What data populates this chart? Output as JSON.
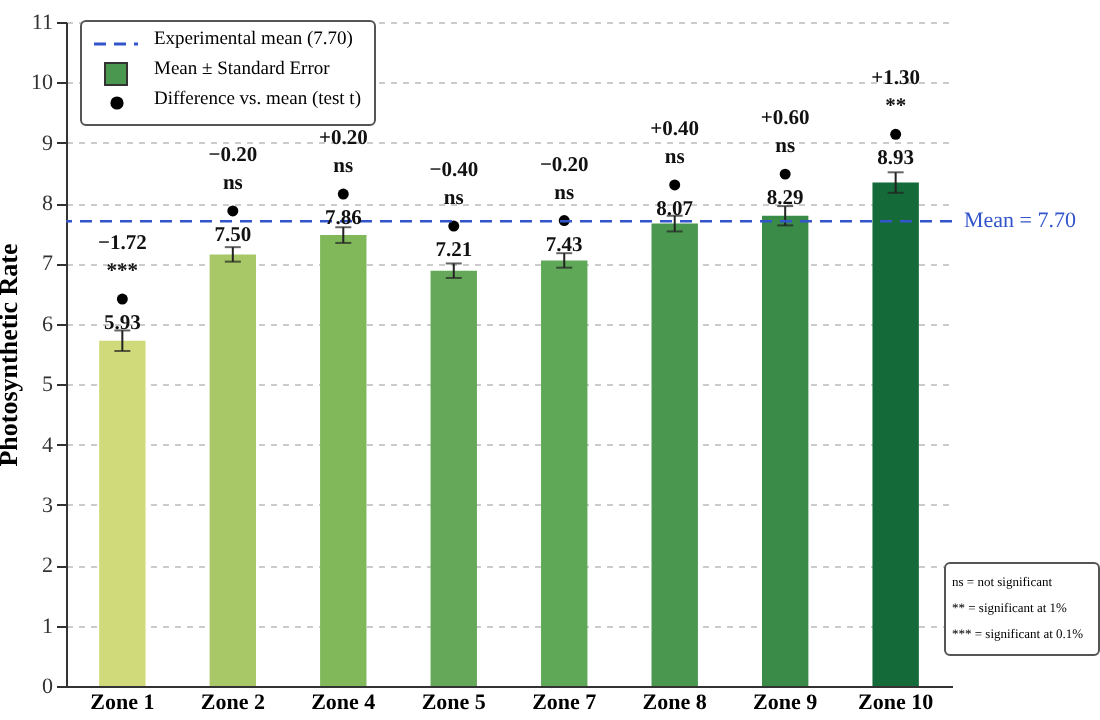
{
  "chart_data": {
    "type": "bar",
    "ylabel": "Photosynthetic Rate",
    "categories": [
      "Zone 1",
      "Zone 2",
      "Zone 4",
      "Zone 5",
      "Zone 7",
      "Zone 8",
      "Zone 9",
      "Zone 10"
    ],
    "series": [
      {
        "name": "Mean ± Standard Error",
        "color": "#4a9850",
        "colors": [
          "#d0da7a",
          "#a8c868",
          "#80b85a",
          "#66a85a",
          "#5fa858",
          "#4a9850",
          "#3a8a48",
          "#146a38"
        ],
        "values": [
          5.72,
          7.15,
          7.47,
          6.88,
          7.05,
          7.66,
          7.79,
          8.34
        ],
        "errors": [
          0.17,
          0.12,
          0.13,
          0.12,
          0.12,
          0.13,
          0.16,
          0.17
        ]
      },
      {
        "name": "Difference vs. mean (test t)",
        "type": "scatter",
        "color": "#000000",
        "x": [
          "Zone 1",
          "Zone 2",
          "Zone 4",
          "Zone 5",
          "Zone 7",
          "Zone 8",
          "Zone 9",
          "Zone 10"
        ],
        "values": [
          6.41,
          7.87,
          8.15,
          7.62,
          7.71,
          8.3,
          8.48,
          9.14
        ]
      }
    ],
    "ylim": [
      0,
      11
    ],
    "yticks": [
      0,
      1,
      2,
      3,
      4,
      5,
      6,
      7,
      8,
      9,
      10,
      11
    ],
    "grid": "y",
    "legend": "top left",
    "marker": "circle",
    "ref_lines": [
      {
        "axis": "y",
        "value": 7.7,
        "label": "Experimental mean (7.70)",
        "color": "#3355cc",
        "line_style": "dashed"
      }
    ],
    "annotations": [
      "Mean = 7.70",
      {
        "text": "−1.72",
        "x": "Zone 1",
        "y": 6.41
      },
      {
        "text": "***",
        "x": "Zone 1",
        "y": 6.41
      },
      {
        "text": "5.93",
        "x": "Zone 1",
        "y": 6.41
      },
      {
        "text": "−0.20",
        "x": "Zone 2",
        "y": 7.87
      },
      {
        "text": "ns",
        "x": "Zone 2",
        "y": 7.87
      },
      {
        "text": "7.50",
        "x": "Zone 2",
        "y": 7.87
      },
      {
        "text": "+0.20",
        "x": "Zone 4",
        "y": 8.15
      },
      {
        "text": "ns",
        "x": "Zone 4",
        "y": 8.15
      },
      {
        "text": "7.86",
        "x": "Zone 4",
        "y": 8.15
      },
      {
        "text": "−0.40",
        "x": "Zone 5",
        "y": 7.62
      },
      {
        "text": "ns",
        "x": "Zone 5",
        "y": 7.62
      },
      {
        "text": "7.21",
        "x": "Zone 5",
        "y": 7.62
      },
      {
        "text": "−0.20",
        "x": "Zone 7",
        "y": 7.71
      },
      {
        "text": "ns",
        "x": "Zone 7",
        "y": 7.71
      },
      {
        "text": "7.43",
        "x": "Zone 7",
        "y": 7.71
      },
      {
        "text": "+0.40",
        "x": "Zone 8",
        "y": 8.3
      },
      {
        "text": "ns",
        "x": "Zone 8",
        "y": 8.3
      },
      {
        "text": "8.07",
        "x": "Zone 8",
        "y": 8.3
      },
      {
        "text": "+0.60",
        "x": "Zone 9",
        "y": 8.48
      },
      {
        "text": "ns",
        "x": "Zone 9",
        "y": 8.48
      },
      {
        "text": "8.29",
        "x": "Zone 9",
        "y": 8.48
      },
      {
        "text": "+1.30",
        "x": "Zone 10",
        "y": 9.14
      },
      {
        "text": "**",
        "x": "Zone 10",
        "y": 9.14
      },
      {
        "text": "8.93",
        "x": "Zone 10",
        "y": 9.14
      },
      "ns = not significant",
      "** = significant at 1%",
      "*** = significant at 0.1%"
    ]
  }
}
